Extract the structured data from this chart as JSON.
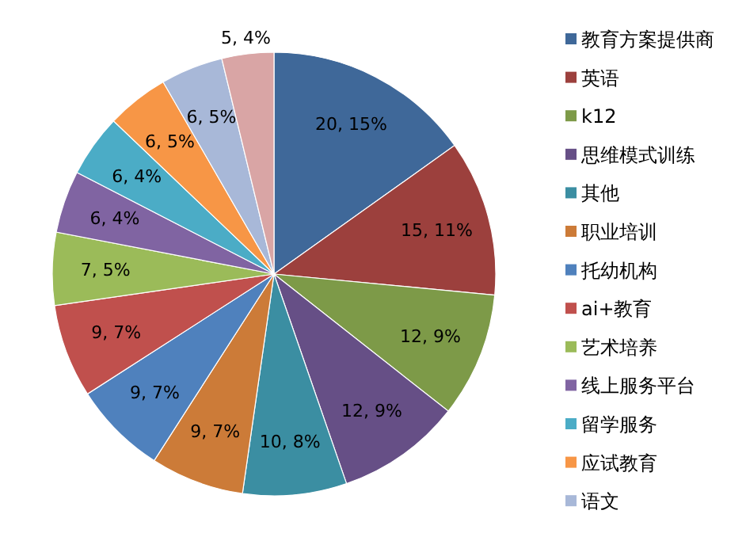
{
  "chart_data": {
    "type": "pie",
    "legend": "right",
    "categories": [
      "教育方案提供商",
      "英语",
      "k12",
      "思维模式训练",
      "其他",
      "职业培训",
      "托幼机构",
      "ai+教育",
      "艺术培养",
      "线上服务平台",
      "留学服务",
      "应试教育",
      "语文",
      null
    ],
    "values": [
      20,
      15,
      12,
      12,
      10,
      9,
      9,
      9,
      7,
      6,
      6,
      6,
      6,
      5
    ],
    "value_labels": [
      "20, 15%",
      "15, 11%",
      "12, 9%",
      "12, 9%",
      "10, 8%",
      "9, 7%",
      "9, 7%",
      "9, 7%",
      "7, 5%",
      "6, 4%",
      "6, 4%",
      "6, 5%",
      "6, 5%",
      "5, 4%"
    ],
    "colors": [
      "#3f6899",
      "#9c403d",
      "#7d9a48",
      "#664f86",
      "#3b8ea2",
      "#cc7b38",
      "#4f81bd",
      "#c0504d",
      "#9bbb59",
      "#8064a2",
      "#4bacc6",
      "#f79646",
      "#a8b8d8",
      "#d9a5a5"
    ]
  }
}
